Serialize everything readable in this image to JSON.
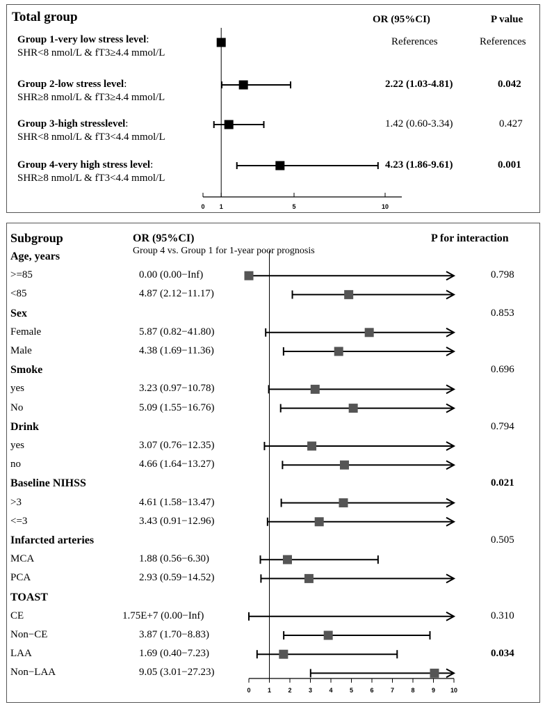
{
  "top": {
    "title": "Total group",
    "or_header": "OR (95%CI)",
    "p_header": "P value",
    "rows": [
      {
        "label_bold": "Group 1-very low stress level",
        "label_colon": ":",
        "criteria": "SHR<8 nmol/L  & fT3≥4.4 mmol/L",
        "or_text": "References",
        "p_text": "References",
        "or_bold": false,
        "p_bold": false,
        "or": 1.0,
        "ci_low": null,
        "ci_high": null
      },
      {
        "label_bold": "Group 2-low stress level",
        "label_colon": ":",
        "criteria": "SHR≥8 nmol/L  & fT3≥4.4 mmol/L",
        "or_text": "2.22 (1.03-4.81)",
        "p_text": "0.042",
        "or_bold": true,
        "p_bold": true,
        "or": 2.22,
        "ci_low": 1.03,
        "ci_high": 4.81
      },
      {
        "label_bold": "Group 3-high stresslevel",
        "label_colon": ":",
        "criteria": "SHR<8 nmol/L  & fT3<4.4 mmol/L",
        "or_text": "1.42 (0.60-3.34)",
        "p_text": "0.427",
        "or_bold": false,
        "p_bold": false,
        "or": 1.42,
        "ci_low": 0.6,
        "ci_high": 3.34
      },
      {
        "label_bold": "Group 4-very high stress level",
        "label_colon": ":",
        "criteria": "SHR≥8 nmol/L  & fT3<4.4 mmol/L",
        "or_text": "4.23 (1.86-9.61)",
        "p_text": "0.001",
        "or_bold": true,
        "p_bold": true,
        "or": 4.23,
        "ci_low": 1.86,
        "ci_high": 9.61
      }
    ]
  },
  "bottom": {
    "title": "Subgroup",
    "or_header": "OR (95%CI)",
    "or_subheader": "Group 4 vs. Group 1 for 1-year poor prognosis",
    "p_header": "P for interaction"
  },
  "chart_data": [
    {
      "type": "forest",
      "title": "Total group",
      "reference_line": 1,
      "xlim": [
        0,
        11.2
      ],
      "xticks": [
        0,
        1,
        5,
        10
      ],
      "points": [
        {
          "label": "Group 1-very low stress level",
          "or": 1.0,
          "ci_low": null,
          "ci_high": null
        },
        {
          "label": "Group 2-low stress level",
          "or": 2.22,
          "ci_low": 1.03,
          "ci_high": 4.81
        },
        {
          "label": "Group 3-high stresslevel",
          "or": 1.42,
          "ci_low": 0.6,
          "ci_high": 3.34
        },
        {
          "label": "Group 4-very high stress level",
          "or": 4.23,
          "ci_low": 1.86,
          "ci_high": 9.61
        }
      ]
    },
    {
      "type": "forest",
      "title": "Subgroup",
      "reference_line": 1,
      "xlim": [
        0,
        10
      ],
      "xticks": [
        0,
        1,
        2,
        3,
        4,
        5,
        6,
        7,
        8,
        9,
        10
      ],
      "rows": [
        {
          "kind": "header",
          "label": "Age, years"
        },
        {
          "kind": "item",
          "label": ">=85",
          "or_text": "0.00 (0.00−Inf)",
          "or": 0.0,
          "ci_low": 0.0,
          "ci_high": 10,
          "arrow": true,
          "p": "0.798",
          "p_bold": false
        },
        {
          "kind": "item",
          "label": "<85",
          "or_text": "4.87 (2.12−11.17)",
          "or": 4.87,
          "ci_low": 2.12,
          "ci_high": 10,
          "arrow": true,
          "p": "",
          "p_bold": false
        },
        {
          "kind": "header",
          "label": "Sex",
          "p": "0.853",
          "p_bold": false
        },
        {
          "kind": "item",
          "label": "Female",
          "or_text": "5.87 (0.82−41.80)",
          "or": 5.87,
          "ci_low": 0.82,
          "ci_high": 10,
          "arrow": true,
          "p": "",
          "p_bold": false
        },
        {
          "kind": "item",
          "label": "Male",
          "or_text": "4.38 (1.69−11.36)",
          "or": 4.38,
          "ci_low": 1.69,
          "ci_high": 10,
          "arrow": true,
          "p": "",
          "p_bold": false
        },
        {
          "kind": "header",
          "label": "Smoke",
          "p": "0.696",
          "p_bold": false
        },
        {
          "kind": "item",
          "label": "yes",
          "or_text": "3.23 (0.97−10.78)",
          "or": 3.23,
          "ci_low": 0.97,
          "ci_high": 10,
          "arrow": true,
          "p": "",
          "p_bold": false
        },
        {
          "kind": "item",
          "label": "No",
          "or_text": "5.09 (1.55−16.76)",
          "or": 5.09,
          "ci_low": 1.55,
          "ci_high": 10,
          "arrow": true,
          "p": "",
          "p_bold": false
        },
        {
          "kind": "header",
          "label": "Drink",
          "p": "0.794",
          "p_bold": false
        },
        {
          "kind": "item",
          "label": "yes",
          "or_text": "3.07 (0.76−12.35)",
          "or": 3.07,
          "ci_low": 0.76,
          "ci_high": 10,
          "arrow": true,
          "p": "",
          "p_bold": false
        },
        {
          "kind": "item",
          "label": "no",
          "or_text": "4.66 (1.64−13.27)",
          "or": 4.66,
          "ci_low": 1.64,
          "ci_high": 10,
          "arrow": true,
          "p": "",
          "p_bold": false
        },
        {
          "kind": "header",
          "label": "Baseline NIHSS",
          "p": "0.021",
          "p_bold": true
        },
        {
          "kind": "item",
          "label": ">3",
          "or_text": "4.61 (1.58−13.47)",
          "or": 4.61,
          "ci_low": 1.58,
          "ci_high": 10,
          "arrow": true,
          "p": "",
          "p_bold": false
        },
        {
          "kind": "item",
          "label": "<=3",
          "or_text": "3.43 (0.91−12.96)",
          "or": 3.43,
          "ci_low": 0.91,
          "ci_high": 10,
          "arrow": true,
          "p": "",
          "p_bold": false
        },
        {
          "kind": "header",
          "label": "Infarcted arteries",
          "p": "0.505",
          "p_bold": false
        },
        {
          "kind": "item",
          "label": "MCA",
          "or_text": "1.88 (0.56−6.30)",
          "or": 1.88,
          "ci_low": 0.56,
          "ci_high": 6.3,
          "arrow": false,
          "p": "",
          "p_bold": false
        },
        {
          "kind": "item",
          "label": "PCA",
          "or_text": "2.93 (0.59−14.52)",
          "or": 2.93,
          "ci_low": 0.59,
          "ci_high": 10,
          "arrow": true,
          "p": "",
          "p_bold": false
        },
        {
          "kind": "header",
          "label": "TOAST"
        },
        {
          "kind": "item",
          "label": "CE",
          "or_text": "1.75E+7 (0.00−Inf)",
          "or": null,
          "ci_low": 0.0,
          "ci_high": 10,
          "arrow": true,
          "p": "0.310",
          "p_bold": false
        },
        {
          "kind": "item",
          "label": "Non−CE",
          "or_text": "3.87 (1.70−8.83)",
          "or": 3.87,
          "ci_low": 1.7,
          "ci_high": 8.83,
          "arrow": false,
          "p": "",
          "p_bold": false
        },
        {
          "kind": "item",
          "label": "LAA",
          "or_text": "1.69 (0.40−7.23)",
          "or": 1.69,
          "ci_low": 0.4,
          "ci_high": 7.23,
          "arrow": false,
          "p": "0.034",
          "p_bold": true
        },
        {
          "kind": "item",
          "label": "Non−LAA",
          "or_text": "9.05 (3.01−27.23)",
          "or": 9.05,
          "ci_low": 3.01,
          "ci_high": 10,
          "arrow": true,
          "p": "",
          "p_bold": false
        }
      ]
    }
  ]
}
